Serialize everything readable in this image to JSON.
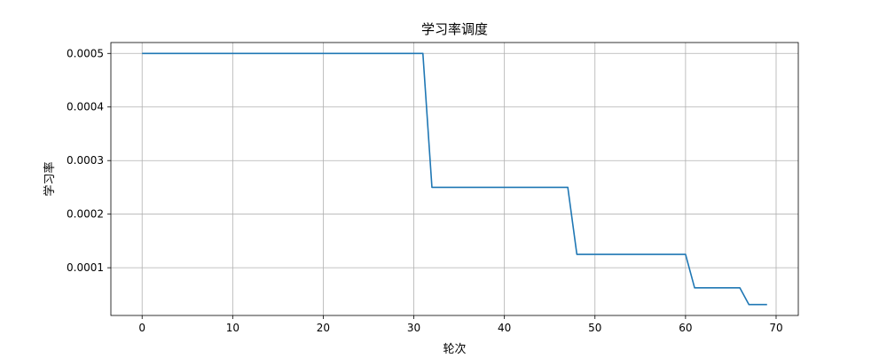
{
  "chart_data": {
    "type": "line",
    "title": "学习率调度",
    "xlabel": "轮次",
    "ylabel": "学习率",
    "xlim": [
      -3.45,
      72.45
    ],
    "ylim": [
      1.09375e-05,
      0.0005203125
    ],
    "x_ticks": [
      0,
      10,
      20,
      30,
      40,
      50,
      60,
      70
    ],
    "x_tick_labels": [
      "0",
      "10",
      "20",
      "30",
      "40",
      "50",
      "60",
      "70"
    ],
    "y_ticks": [
      0.0001,
      0.0002,
      0.0003,
      0.0004,
      0.0005
    ],
    "y_tick_labels": [
      "0.0001",
      "0.0002",
      "0.0003",
      "0.0004",
      "0.0005"
    ],
    "grid": true,
    "series": [
      {
        "color": "#1f77b4",
        "x": [
          0,
          31,
          32,
          47,
          48,
          60,
          61,
          66,
          67,
          69
        ],
        "y": [
          0.0005,
          0.0005,
          0.00025,
          0.00025,
          0.000125,
          0.000125,
          6.25e-05,
          6.25e-05,
          3.125e-05,
          3.125e-05
        ]
      }
    ]
  }
}
